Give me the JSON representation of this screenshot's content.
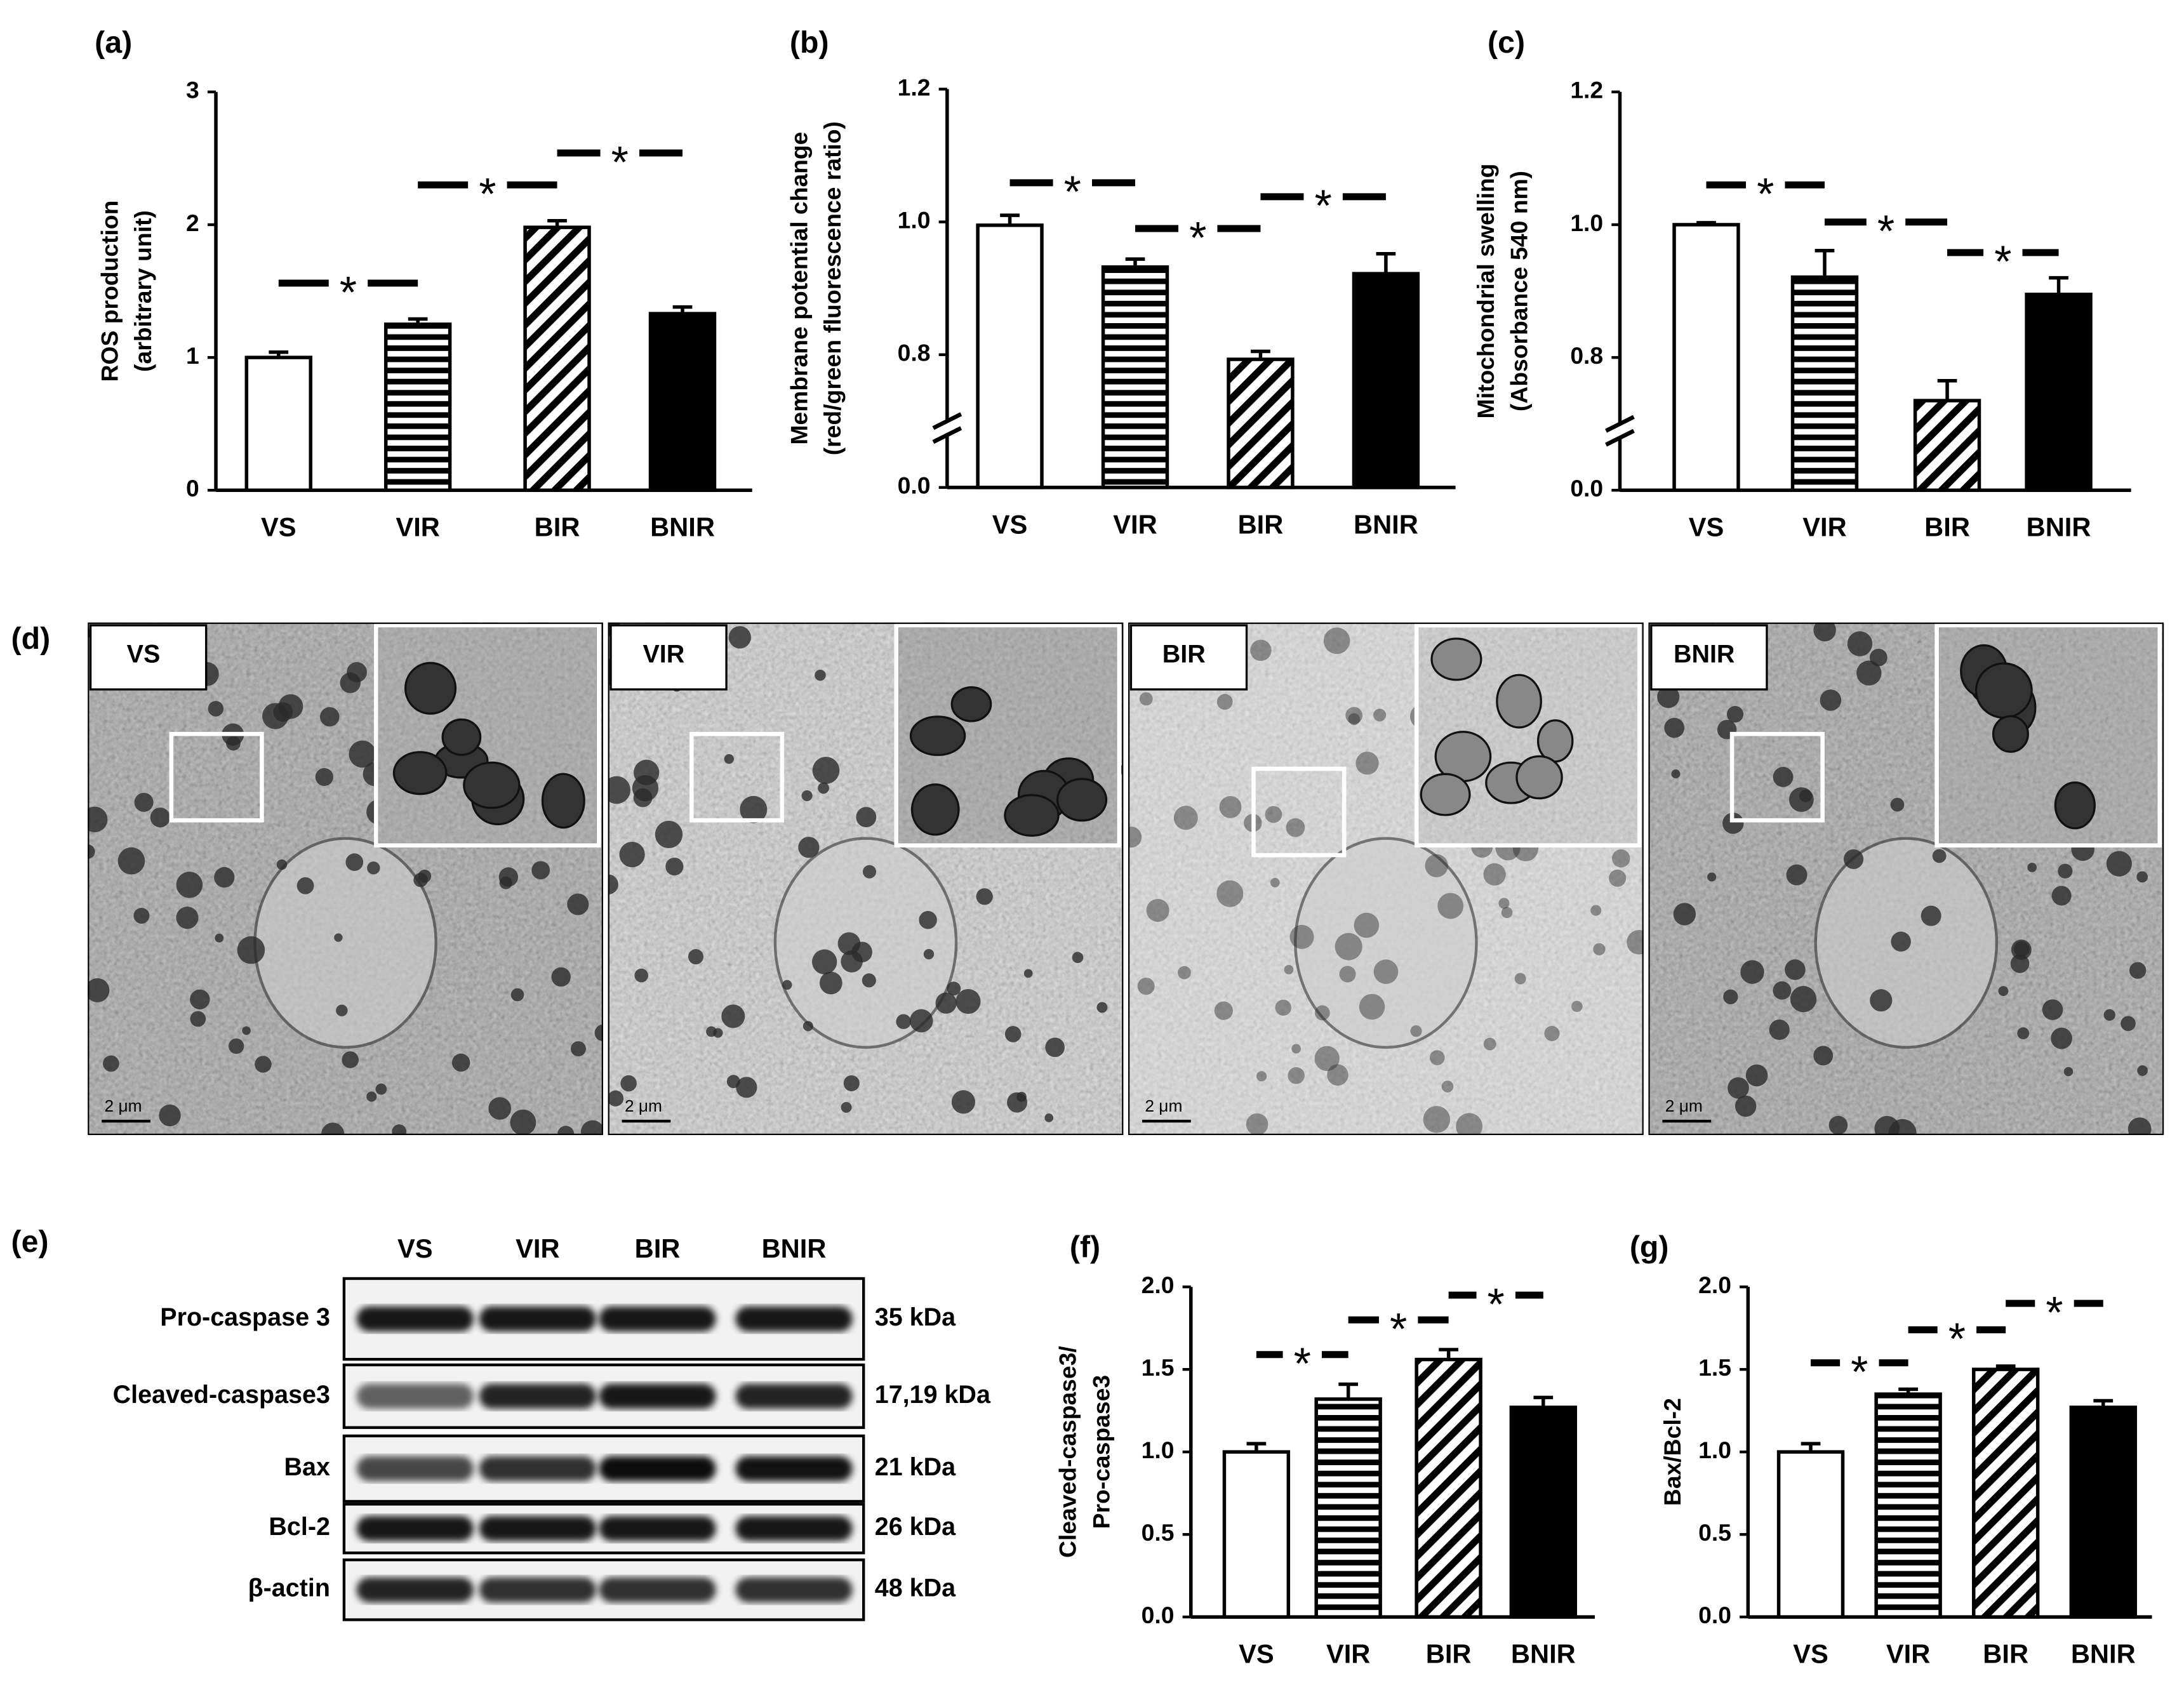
{
  "chart_data": [
    {
      "type": "bar",
      "panel": "(a)",
      "ylabel": [
        "ROS production",
        "(arbitrary unit)"
      ],
      "categories": [
        "VS",
        "VIR",
        "BIR",
        "BNIR"
      ],
      "values": [
        1.0,
        1.25,
        1.98,
        1.33
      ],
      "errors": [
        0.04,
        0.04,
        0.05,
        0.05
      ],
      "patterns": [
        "none",
        "horizontal",
        "diagonal",
        "solid"
      ],
      "color": "#000000",
      "ylim": [
        0,
        3
      ],
      "yticks": [
        0,
        1,
        2,
        3
      ],
      "significance": [
        {
          "from": 0,
          "to": 1,
          "label": "*",
          "y": 1.56
        },
        {
          "from": 1,
          "to": 2,
          "label": "*",
          "y": 2.3
        },
        {
          "from": 2,
          "to": 3,
          "label": "*",
          "y": 2.54
        }
      ]
    },
    {
      "type": "bar",
      "panel": "(b)",
      "ylabel": [
        "Membrane potential change",
        "(red/green fluorescence ratio)"
      ],
      "categories": [
        "VS",
        "VIR",
        "BIR",
        "BNIR"
      ],
      "values": [
        0.995,
        0.932,
        0.793,
        0.922
      ],
      "errors": [
        0.015,
        0.012,
        0.012,
        0.03
      ],
      "patterns": [
        "none",
        "horizontal",
        "diagonal",
        "solid"
      ],
      "color": "#000000",
      "ylim": [
        0,
        1.2
      ],
      "y_break": [
        0,
        0.8
      ],
      "yticks": [
        {
          "value": 0,
          "label": "0.0"
        },
        0.8,
        {
          "value": 1,
          "label": "1.0"
        },
        1.2
      ],
      "significance": [
        {
          "from": 0,
          "to": 1,
          "label": "*",
          "y": 1.059
        },
        {
          "from": 1,
          "to": 2,
          "label": "*",
          "y": 0.99
        },
        {
          "from": 2,
          "to": 3,
          "label": "*",
          "y": 1.038
        }
      ]
    },
    {
      "type": "bar",
      "panel": "(c)",
      "ylabel": [
        "Mitochondrial swelling",
        "(Absorbance 540 nm)"
      ],
      "categories": [
        "VS",
        "VIR",
        "BIR",
        "BNIR"
      ],
      "values": [
        1.0,
        0.921,
        0.735,
        0.895
      ],
      "errors": [
        0.003,
        0.04,
        0.03,
        0.025
      ],
      "patterns": [
        "none",
        "horizontal",
        "diagonal",
        "solid"
      ],
      "color": "#000000",
      "ylim": [
        0,
        1.2
      ],
      "y_break": [
        0,
        0.8
      ],
      "yticks": [
        {
          "value": 0,
          "label": "0.0"
        },
        0.8,
        {
          "value": 1,
          "label": "1.0"
        },
        1.2
      ],
      "significance": [
        {
          "from": 0,
          "to": 1,
          "label": "*",
          "y": 1.06
        },
        {
          "from": 1,
          "to": 2,
          "label": "*",
          "y": 1.004
        },
        {
          "from": 2,
          "to": 3,
          "label": "*",
          "y": 0.958
        }
      ]
    },
    {
      "type": "bar",
      "panel": "(f)",
      "ylabel": [
        "Cleaved-caspase3/",
        "Pro-caspase3"
      ],
      "categories": [
        "VS",
        "VIR",
        "BIR",
        "BNIR"
      ],
      "values": [
        1.0,
        1.32,
        1.56,
        1.27
      ],
      "errors": [
        0.05,
        0.09,
        0.06,
        0.06
      ],
      "patterns": [
        "none",
        "horizontal",
        "diagonal",
        "solid"
      ],
      "color": "#000000",
      "ylim": [
        0,
        2
      ],
      "yticks": [
        {
          "value": 0,
          "label": "0.0"
        },
        0.5,
        {
          "value": 1,
          "label": "1.0"
        },
        1.5,
        {
          "value": 2,
          "label": "2.0"
        }
      ],
      "significance": [
        {
          "from": 0,
          "to": 1,
          "label": "*",
          "y": 1.59
        },
        {
          "from": 1,
          "to": 2,
          "label": "*",
          "y": 1.8
        },
        {
          "from": 2,
          "to": 3,
          "label": "*",
          "y": 1.95
        }
      ]
    },
    {
      "type": "bar",
      "panel": "(g)",
      "ylabel": [
        "Bax/Bcl-2"
      ],
      "categories": [
        "VS",
        "VIR",
        "BIR",
        "BNIR"
      ],
      "values": [
        1.0,
        1.35,
        1.5,
        1.27
      ],
      "errors": [
        0.05,
        0.03,
        0.02,
        0.04
      ],
      "patterns": [
        "none",
        "horizontal",
        "diagonal",
        "solid"
      ],
      "color": "#000000",
      "ylim": [
        0,
        2
      ],
      "yticks": [
        {
          "value": 0,
          "label": "0.0"
        },
        0.5,
        {
          "value": 1,
          "label": "1.0"
        },
        1.5,
        {
          "value": 2,
          "label": "2.0"
        }
      ],
      "significance": [
        {
          "from": 0,
          "to": 1,
          "label": "*",
          "y": 1.54
        },
        {
          "from": 1,
          "to": 2,
          "label": "*",
          "y": 1.74
        },
        {
          "from": 2,
          "to": 3,
          "label": "*",
          "y": 1.9
        }
      ]
    }
  ],
  "micrographs": {
    "panel": "(d)",
    "images": [
      {
        "label": "VS",
        "scale_bar": "2 μm"
      },
      {
        "label": "VIR",
        "scale_bar": "2 μm"
      },
      {
        "label": "BIR",
        "scale_bar": "2 μm"
      },
      {
        "label": "BNIR",
        "scale_bar": "2 μm"
      }
    ]
  },
  "western_blot": {
    "panel": "(e)",
    "lanes": [
      "VS",
      "VIR",
      "BIR",
      "BNIR"
    ],
    "rows": [
      {
        "protein": "Pro-caspase 3",
        "size": "35 kDa"
      },
      {
        "protein": "Cleaved-caspase3",
        "size": "17,19 kDa"
      },
      {
        "protein": "Bax",
        "size": "21 kDa"
      },
      {
        "protein": "Bcl-2",
        "size": "26 kDa"
      },
      {
        "protein": "β-actin",
        "size": "48 kDa"
      }
    ]
  }
}
